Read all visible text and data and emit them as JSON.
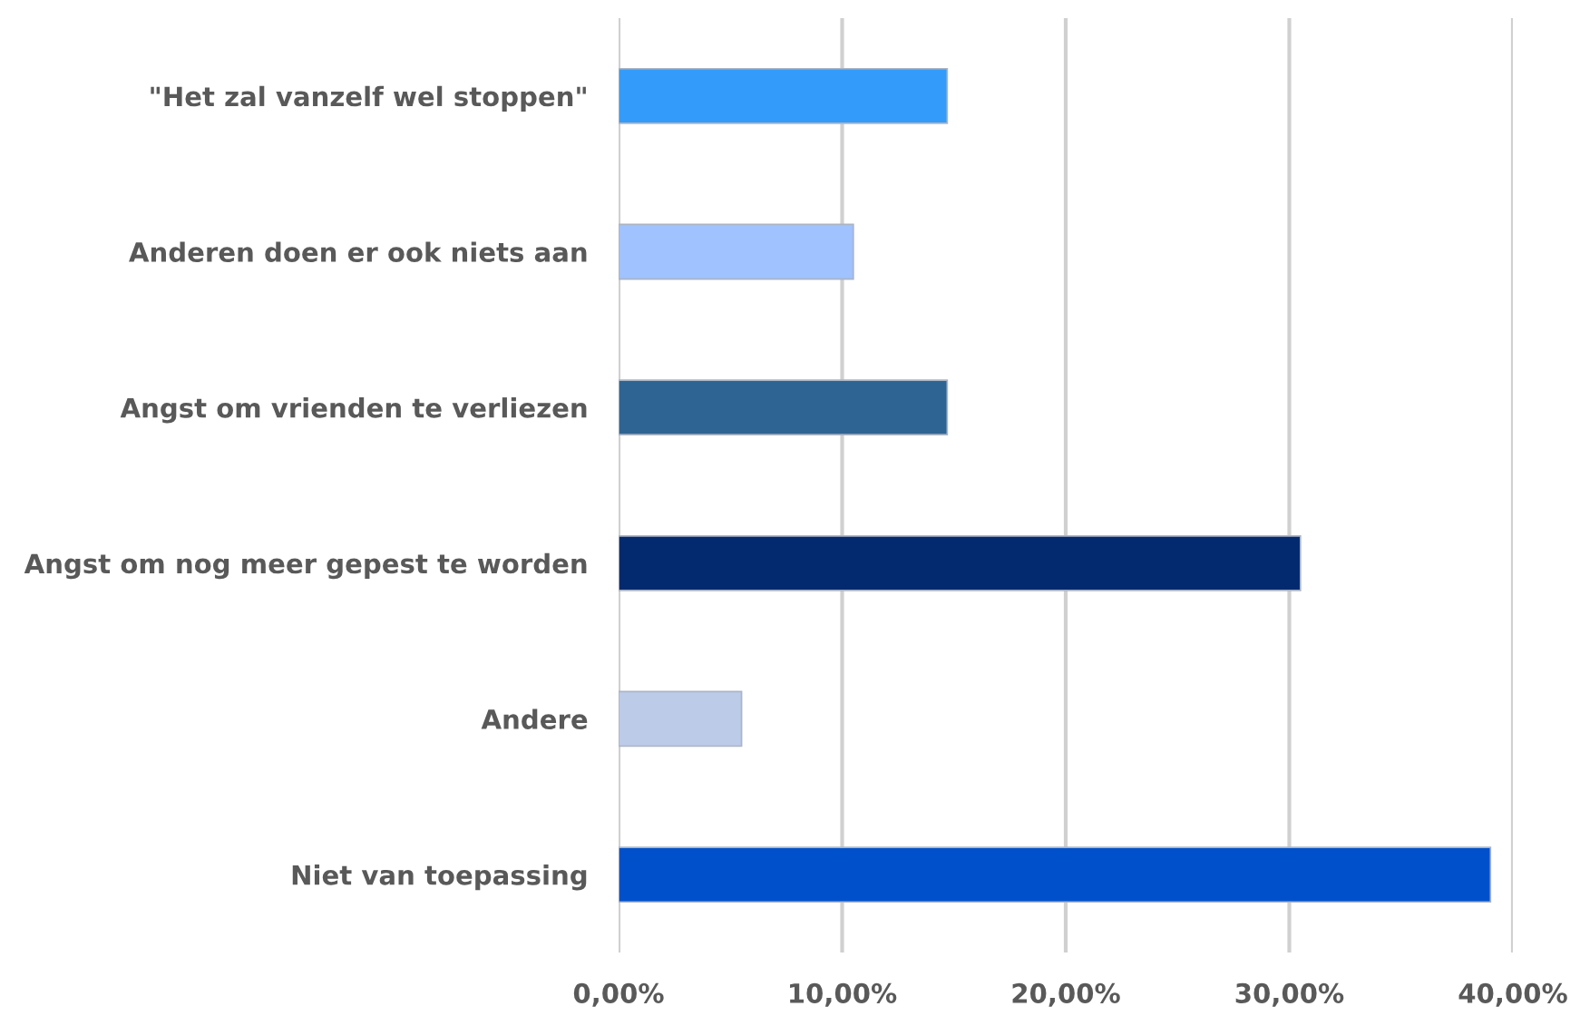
{
  "chart_data": {
    "type": "bar",
    "orientation": "horizontal",
    "categories": [
      "\"Het zal vanzelf wel stoppen\"",
      "Anderen doen er ook niets aan",
      "Angst om vrienden te verliezen",
      "Angst om nog meer gepest te worden",
      "Andere",
      "Niet van toepassing"
    ],
    "values": [
      14.7,
      10.5,
      14.7,
      30.5,
      5.5,
      39.0
    ],
    "colors": [
      "#339cfa",
      "#a0c2fe",
      "#2e6493",
      "#032a6e",
      "#bccbe8",
      "#0050cc"
    ],
    "xlim": [
      0,
      40
    ],
    "xticks": [
      {
        "value": 0,
        "label": "0,00%"
      },
      {
        "value": 10,
        "label": "10,00%"
      },
      {
        "value": 20,
        "label": "20,00%"
      },
      {
        "value": 30,
        "label": "30,00%"
      },
      {
        "value": 40,
        "label": "40,00%"
      }
    ],
    "grid": "x"
  }
}
